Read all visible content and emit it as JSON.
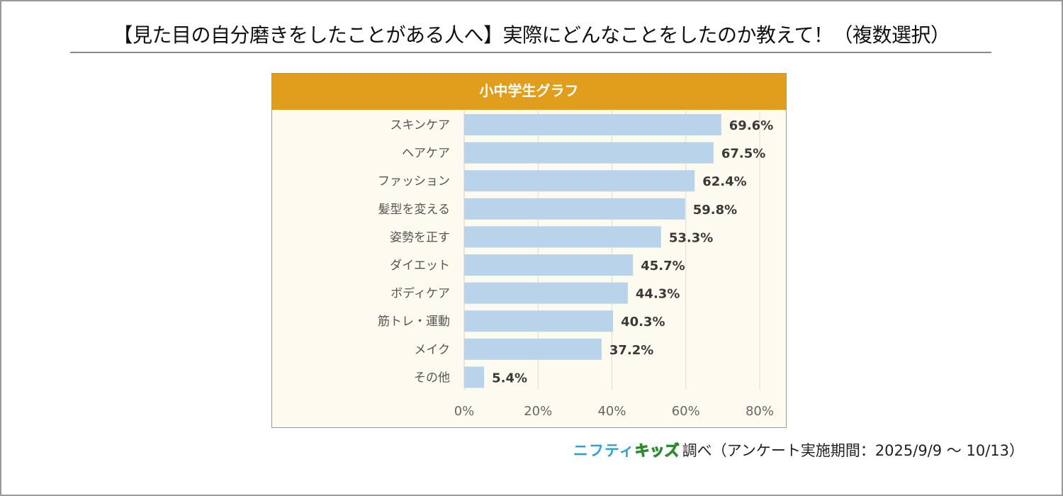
{
  "title": "【見た目の自分磨きをしたことがある人へ】実際にどんなことをしたのか教えて！（複数選択）",
  "footer": {
    "logo_part1": "ニフティ",
    "logo_part2": "キッズ",
    "text": "調べ（アンケート実施期間：2025/9/9 ～ 10/13）"
  },
  "colors": {
    "header": "#e09e1c",
    "bar": "#b8d3ea",
    "plot_bg": "#fdfbef",
    "label_text": "#3a3a3a"
  },
  "chart_data": {
    "type": "bar",
    "orientation": "horizontal",
    "title": "小中学生グラフ",
    "categories": [
      "スキンケア",
      "ヘアケア",
      "ファッション",
      "髪型を変える",
      "姿勢を正す",
      "ダイエット",
      "ボディケア",
      "筋トレ・運動",
      "メイク",
      "その他"
    ],
    "values": [
      69.6,
      67.5,
      62.4,
      59.8,
      53.3,
      45.7,
      44.3,
      40.3,
      37.2,
      5.4
    ],
    "value_labels": [
      "69.6%",
      "67.5%",
      "62.4%",
      "59.8%",
      "53.3%",
      "45.7%",
      "44.3%",
      "40.3%",
      "37.2%",
      "5.4%"
    ],
    "xlim": [
      0,
      80
    ],
    "xticks": [
      0,
      20,
      40,
      60,
      80
    ],
    "xtick_labels": [
      "0%",
      "20%",
      "40%",
      "60%",
      "80%"
    ],
    "grid": true,
    "xlabel": "",
    "ylabel": ""
  }
}
